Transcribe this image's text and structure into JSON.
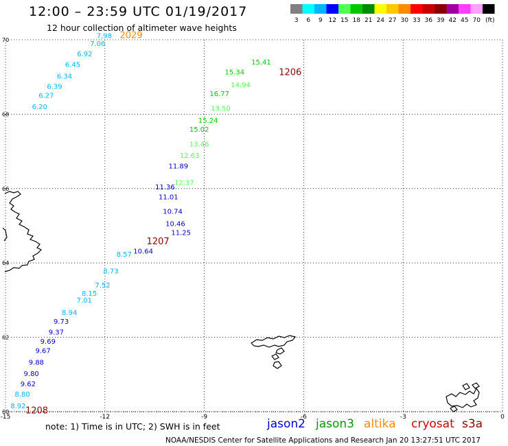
{
  "header": {
    "title": "12:00 – 23:59 UTC 01/19/2017",
    "subtitle": "12 hour collection of altimeter wave heights"
  },
  "legend": {
    "unit": "(ft)",
    "bins": [
      {
        "label": "3",
        "color": "#808080"
      },
      {
        "label": "6",
        "color": "#00ffff"
      },
      {
        "label": "9",
        "color": "#00b4ff"
      },
      {
        "label": "12",
        "color": "#0000ff"
      },
      {
        "label": "15",
        "color": "#50ff50"
      },
      {
        "label": "18",
        "color": "#00c800"
      },
      {
        "label": "21",
        "color": "#008c00"
      },
      {
        "label": "24",
        "color": "#ffff00"
      },
      {
        "label": "27",
        "color": "#ffc800"
      },
      {
        "label": "30",
        "color": "#ff8c00"
      },
      {
        "label": "33",
        "color": "#ff0000"
      },
      {
        "label": "36",
        "color": "#c80000"
      },
      {
        "label": "39",
        "color": "#8c0000"
      },
      {
        "label": "42",
        "color": "#a000a0"
      },
      {
        "label": "45",
        "color": "#ff3cff"
      },
      {
        "label": "70",
        "color": "#ffa0ff"
      },
      {
        "label": "",
        "color": "#000000"
      }
    ]
  },
  "map": {
    "lat_range": [
      60,
      70
    ],
    "lon_range": [
      -15,
      0
    ],
    "lat_labels": [
      "70",
      "68",
      "66",
      "64",
      "62",
      "60"
    ],
    "lon_labels": [
      "-15",
      "-12",
      "-9",
      "-6",
      "-3",
      "0"
    ],
    "tracks": [
      {
        "satellite": "jason2",
        "time": "1207",
        "points": [
          {
            "lon": -10.0,
            "lat": 64.75,
            "v": "11.25",
            "c": "#0000cd"
          },
          {
            "lon": -10.17,
            "lat": 64.99,
            "v": "10.46",
            "c": "#0000cd"
          },
          {
            "lon": -10.25,
            "lat": 65.32,
            "v": "10.74",
            "c": "#0000cd"
          },
          {
            "lon": -10.38,
            "lat": 65.71,
            "v": "11.01",
            "c": "#0000cd"
          },
          {
            "lon": -10.48,
            "lat": 65.98,
            "v": "11.36",
            "c": "#0000cd"
          },
          {
            "lon": -9.9,
            "lat": 66.1,
            "v": "12.37",
            "c": "#50ff50"
          },
          {
            "lon": -10.08,
            "lat": 66.54,
            "v": "11.89",
            "c": "#0000cd"
          },
          {
            "lon": -9.74,
            "lat": 66.83,
            "v": "12.63",
            "c": "#50ff50"
          },
          {
            "lon": -9.45,
            "lat": 67.13,
            "v": "13.46",
            "c": "#50ff50"
          },
          {
            "lon": -9.45,
            "lat": 67.53,
            "v": "15.02",
            "c": "#00c800"
          },
          {
            "lon": -9.18,
            "lat": 67.77,
            "v": "15.24",
            "c": "#00c800"
          },
          {
            "lon": -8.8,
            "lat": 68.09,
            "v": "13.50",
            "c": "#50ff50"
          },
          {
            "lon": -8.84,
            "lat": 68.49,
            "v": "16.77",
            "c": "#00c800"
          },
          {
            "lon": -8.2,
            "lat": 68.73,
            "v": "14.94",
            "c": "#50ff50"
          },
          {
            "lon": -8.38,
            "lat": 69.07,
            "v": "15.34",
            "c": "#00c800"
          },
          {
            "lon": -7.58,
            "lat": 69.34,
            "v": "15.41",
            "c": "#00c800"
          }
        ]
      },
      {
        "satellite": "jason2",
        "time": "1208",
        "points": [
          {
            "lon": -11.14,
            "lat": 64.25,
            "v": "10.64",
            "c": "#0000cd"
          },
          {
            "lon": -11.65,
            "lat": 64.17,
            "v": "8.57",
            "c": "#00b4ff"
          },
          {
            "lon": -12.05,
            "lat": 63.72,
            "v": "8.73",
            "c": "#00b4ff"
          },
          {
            "lon": -12.3,
            "lat": 63.34,
            "v": "7.52",
            "c": "#00b4ff"
          },
          {
            "lon": -12.7,
            "lat": 63.12,
            "v": "8.15",
            "c": "#00b4ff"
          },
          {
            "lon": -12.85,
            "lat": 62.93,
            "v": "7.01",
            "c": "#00b4ff"
          },
          {
            "lon": -13.3,
            "lat": 62.6,
            "v": "8.94",
            "c": "#00b4ff"
          },
          {
            "lon": -13.55,
            "lat": 62.36,
            "v": "9.73",
            "c": "#0000cd"
          },
          {
            "lon": -13.7,
            "lat": 62.08,
            "v": "9.37",
            "c": "#0000cd"
          },
          {
            "lon": -13.95,
            "lat": 61.83,
            "v": "9.69",
            "c": "#0000cd"
          },
          {
            "lon": -14.1,
            "lat": 61.58,
            "v": "9.67",
            "c": "#0000cd"
          },
          {
            "lon": -14.3,
            "lat": 61.26,
            "v": "9.88",
            "c": "#0000cd"
          },
          {
            "lon": -14.45,
            "lat": 60.96,
            "v": "9.80",
            "c": "#0000cd"
          },
          {
            "lon": -14.55,
            "lat": 60.68,
            "v": "9.62",
            "c": "#0000cd"
          },
          {
            "lon": -14.72,
            "lat": 60.41,
            "v": "8.80",
            "c": "#00b4ff"
          },
          {
            "lon": -14.85,
            "lat": 60.09,
            "v": "8.92",
            "c": "#00b4ff"
          }
        ]
      },
      {
        "satellite": "jason3",
        "time": "2029",
        "points": [
          {
            "lon": -12.25,
            "lat": 70.05,
            "v": "7.98",
            "c": "#00b4ff"
          },
          {
            "lon": -12.45,
            "lat": 69.83,
            "v": "7.06",
            "c": "#00b4ff"
          },
          {
            "lon": -12.84,
            "lat": 69.56,
            "v": "6.92",
            "c": "#00b4ff"
          },
          {
            "lon": -13.2,
            "lat": 69.27,
            "v": "6.45",
            "c": "#00b4ff"
          },
          {
            "lon": -13.45,
            "lat": 68.96,
            "v": "6.34",
            "c": "#00b4ff"
          },
          {
            "lon": -13.75,
            "lat": 68.68,
            "v": "6.39",
            "c": "#00b4ff"
          },
          {
            "lon": -14.0,
            "lat": 68.44,
            "v": "6.27",
            "c": "#00b4ff"
          },
          {
            "lon": -14.2,
            "lat": 68.14,
            "v": "6.20",
            "c": "#00b4ff"
          }
        ]
      }
    ],
    "time_labels": [
      {
        "text": "2029",
        "c": "#ff8c00",
        "lon": -11.55,
        "lat": 70.05
      },
      {
        "text": "1206",
        "c": "#8c0000",
        "lon": -6.75,
        "lat": 69.05
      },
      {
        "text": "1207",
        "c": "#8c0000",
        "lon": -10.74,
        "lat": 64.5
      },
      {
        "text": "1208",
        "c": "#8c0000",
        "lon": -14.4,
        "lat": 59.95
      }
    ]
  },
  "note": "note: 1) Time is in UTC; 2) SWH is in feet",
  "satellites": [
    {
      "name": "jason2",
      "color": "#0000cd"
    },
    {
      "name": "jason3",
      "color": "#009600"
    },
    {
      "name": "altika",
      "color": "#ff8c00"
    },
    {
      "name": "cryosat",
      "color": "#c80000"
    },
    {
      "name": "s3a",
      "color": "#8c0000"
    }
  ],
  "footer": "NOAA/NESDIS Center for Satellite Applications and Research    Jan 20 13:27:51 UTC 2017"
}
